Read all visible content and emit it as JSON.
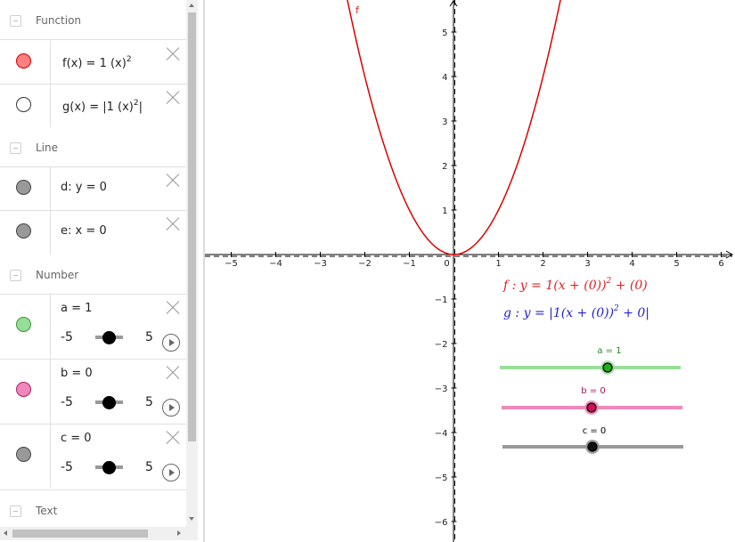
{
  "algebra": {
    "categories": {
      "function": "Function",
      "line": "Line",
      "number": "Number",
      "text": "Text"
    },
    "items": {
      "f": {
        "color": "#ff8080",
        "text": "f(x)  =  1 (x)",
        "exp": "2"
      },
      "g": {
        "color": "#ffffff",
        "text": "g(x)  =  |1 (x)",
        "exp": "2",
        "tail": "|"
      },
      "d": {
        "color": "#999999",
        "text": "d: y  =  0"
      },
      "e": {
        "color": "#999999",
        "text": "e: x  =  0"
      },
      "a": {
        "color": "#99dd99",
        "text": "a = 1",
        "min": "-5",
        "max": "5",
        "value": 1
      },
      "b": {
        "color": "#ee88bb",
        "text": "b = 0",
        "min": "-5",
        "max": "5",
        "value": 0
      },
      "c": {
        "color": "#999999",
        "text": "c = 0",
        "min": "-5",
        "max": "5",
        "value": 0
      }
    }
  },
  "graphics": {
    "x_ticks": [
      "−5",
      "−4",
      "−3",
      "−2",
      "−1",
      "0",
      "1",
      "2",
      "3",
      "4",
      "5",
      "6"
    ],
    "y_ticks_pos": [
      "5",
      "4",
      "3",
      "2",
      "1"
    ],
    "y_ticks_neg": [
      "−1",
      "−2",
      "−3",
      "−4",
      "−5",
      "−6"
    ],
    "curve_label": "f",
    "eq_f": {
      "lhs": "f : y = 1(x + (0))",
      "exp": "2",
      "rhs": " + (0)",
      "color": "#dd2222"
    },
    "eq_g": {
      "lhs": "g : y = |1(x + (0))",
      "exp": "2",
      "rhs": " + 0|",
      "color": "#2222cc"
    },
    "slider_a": {
      "label": "a = 1",
      "color": "#99dd99",
      "label_color": "#228822"
    },
    "slider_b": {
      "label": "b = 0",
      "color": "#ee88bb",
      "label_color": "#aa1155"
    },
    "slider_c": {
      "label": "c = 0",
      "color": "#999999",
      "label_color": "#000000"
    },
    "curve_color": "#dd0000"
  }
}
